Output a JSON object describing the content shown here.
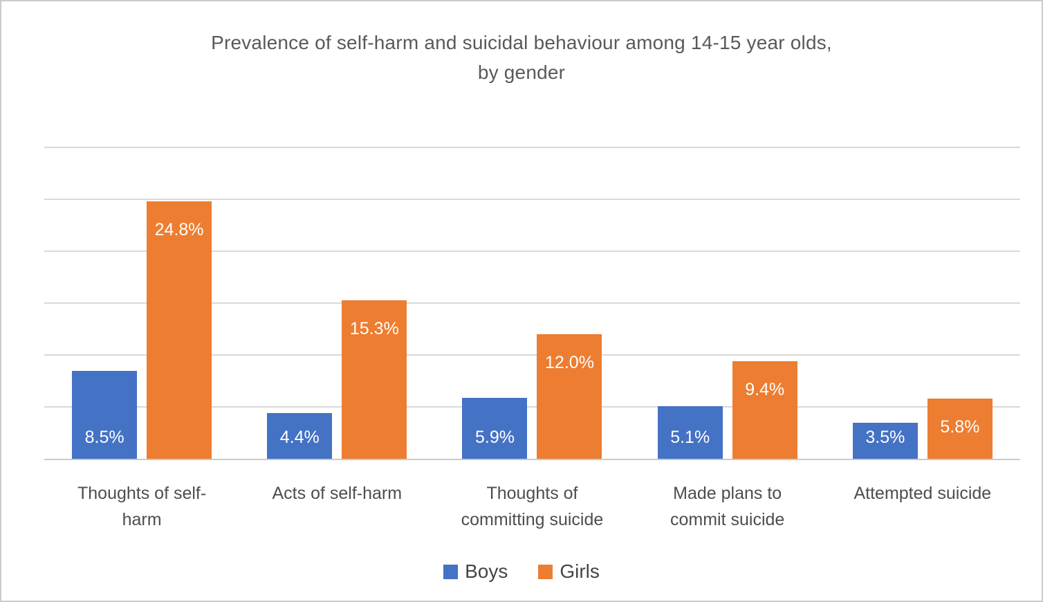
{
  "chart": {
    "title_line1": "Prevalence of self-harm and suicidal behaviour among 14-15 year olds,",
    "title_line2": "by gender"
  },
  "chart_data": {
    "type": "bar",
    "title": "Prevalence of self-harm and suicidal behaviour among 14-15 year olds, by gender",
    "xlabel": "",
    "ylabel": "",
    "categories": [
      "Thoughts of self-harm",
      "Acts of self-harm",
      "Thoughts of committing suicide",
      "Made plans to commit suicide",
      "Attempted suicide"
    ],
    "category_label_lines": [
      [
        "Thoughts of self-",
        "harm"
      ],
      [
        "Acts of self-harm"
      ],
      [
        "Thoughts of",
        "committing suicide"
      ],
      [
        "Made plans to",
        "commit suicide"
      ],
      [
        "Attempted suicide"
      ]
    ],
    "series": [
      {
        "name": "Boys",
        "color": "#4472C4",
        "values": [
          8.5,
          4.4,
          5.9,
          5.1,
          3.5
        ],
        "labels": [
          "8.5%",
          "4.4%",
          "5.9%",
          "5.1%",
          "3.5%"
        ],
        "label_anchor": "inside-base"
      },
      {
        "name": "Girls",
        "color": "#ED7D31",
        "values": [
          24.8,
          15.3,
          12.0,
          9.4,
          5.8
        ],
        "labels": [
          "24.8%",
          "15.3%",
          "12.0%",
          "9.4%",
          "5.8%"
        ],
        "label_anchor": "inside-end"
      }
    ],
    "ylim": [
      0,
      30
    ],
    "gridline_step": 5,
    "grid": true,
    "y_axis_labels_visible": false,
    "legend_position": "bottom",
    "data_label_color": "#ffffff",
    "colors": {
      "grid": "#d9d9d9",
      "axis": "#c9c9c9",
      "text": "#595959"
    }
  }
}
